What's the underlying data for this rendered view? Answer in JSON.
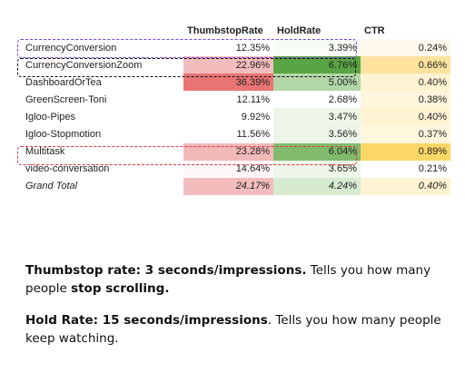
{
  "table": {
    "headers": [
      "",
      "ThumbstopRate",
      "HoldRate",
      "CTR"
    ],
    "rows": [
      {
        "name": "CurrencyConversion",
        "thumbstop": "12.35%",
        "hold": "3.39%",
        "ctr": "0.24%",
        "colors": [
          "#ffffff",
          "#f8fcf6",
          "#fff9ed"
        ]
      },
      {
        "name": "CurrencyConversionZoom",
        "thumbstop": "22.96%",
        "hold": "6.76%",
        "ctr": "0.66%",
        "colors": [
          "#f3bdbd",
          "#5aa543",
          "#fde39d"
        ]
      },
      {
        "name": "DashboardOrTea",
        "thumbstop": "36.39%",
        "hold": "5.00%",
        "ctr": "0.40%",
        "colors": [
          "#e97474",
          "#b3d6a9",
          "#fff3d4"
        ]
      },
      {
        "name": "GreenScreen-Toni",
        "thumbstop": "12.11%",
        "hold": "2.68%",
        "ctr": "0.38%",
        "colors": [
          "#ffffff",
          "#ffffff",
          "#fff6dd"
        ]
      },
      {
        "name": "Igloo-Pipes",
        "thumbstop": "9.92%",
        "hold": "3.47%",
        "ctr": "0.40%",
        "colors": [
          "#ffffff",
          "#eef6ea",
          "#fff3d4"
        ]
      },
      {
        "name": "Igloo-Stopmotion",
        "thumbstop": "11.56%",
        "hold": "3.56%",
        "ctr": "0.37%",
        "colors": [
          "#ffffff",
          "#ecf5e8",
          "#fff6de"
        ]
      },
      {
        "name": "Multitask",
        "thumbstop": "23.28%",
        "hold": "6.04%",
        "ctr": "0.89%",
        "colors": [
          "#f2b9b9",
          "#80bb6e",
          "#fdd766"
        ]
      },
      {
        "name": "video-conversation",
        "thumbstop": "14.64%",
        "hold": "3.65%",
        "ctr": "0.21%",
        "colors": [
          "#fdf6f6",
          "#eef6ea",
          "#ffffff"
        ]
      }
    ],
    "total": {
      "name": "Grand Total",
      "thumbstop": "24.17%",
      "hold": "4.24%",
      "ctr": "0.40%",
      "colors": [
        "#f3bdbd",
        "#d7ebd1",
        "#fff3d4"
      ]
    }
  },
  "highlights": [
    {
      "row": "CurrencyConversion",
      "color": "#7b3fe4"
    },
    {
      "row": "CurrencyConversionZoom",
      "color": "#111111"
    },
    {
      "row": "Multitask",
      "color": "#e8333e"
    }
  ],
  "notes": {
    "thumbstop": {
      "term": "Thumbstop rate: 3 seconds/impressions.",
      "text_before": " Tells you how many people ",
      "bold_end": "stop scrolling."
    },
    "hold": {
      "term": "Hold Rate: 15 seconds/impressions",
      "text_after": ". Tells you how many people keep watching."
    }
  }
}
